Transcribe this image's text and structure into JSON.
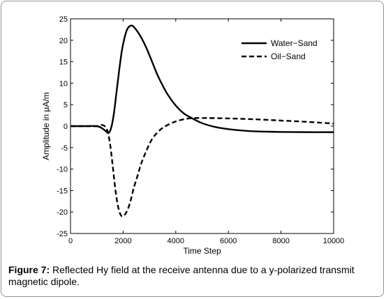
{
  "chart_data": {
    "type": "line",
    "title": "",
    "xlabel": "Time Step",
    "ylabel": "Amplitude in μA/m",
    "xlim": [
      0,
      10000
    ],
    "ylim": [
      -25,
      25
    ],
    "xticks": [
      0,
      2000,
      4000,
      6000,
      8000,
      10000
    ],
    "yticks": [
      -25,
      -20,
      -15,
      -10,
      -5,
      0,
      5,
      10,
      15,
      20,
      25
    ],
    "grid": false,
    "legend_position": "top-right",
    "series": [
      {
        "name": "Water−Sand",
        "style": "solid",
        "color": "#000000",
        "x": [
          0,
          500,
          1000,
          1200,
          1350,
          1450,
          1550,
          1650,
          1750,
          1850,
          1950,
          2050,
          2150,
          2250,
          2350,
          2450,
          2550,
          2700,
          2900,
          3100,
          3300,
          3500,
          3700,
          4000,
          4300,
          4600,
          5000,
          5500,
          6000,
          6500,
          7000,
          8000,
          9000,
          10000
        ],
        "y": [
          0,
          0,
          0,
          -0.5,
          -1.2,
          -1.6,
          -0.3,
          3,
          8,
          13,
          17.5,
          20.5,
          22.5,
          23.3,
          23.4,
          22.8,
          22,
          20.5,
          18,
          15,
          12,
          9.5,
          7.3,
          4.8,
          3,
          1.9,
          0.7,
          -0.2,
          -0.7,
          -1,
          -1.2,
          -1.35,
          -1.4,
          -1.4
        ]
      },
      {
        "name": "Oil−Sand",
        "style": "dashed",
        "color": "#000000",
        "x": [
          0,
          500,
          1000,
          1150,
          1300,
          1400,
          1500,
          1600,
          1700,
          1800,
          1900,
          2000,
          2100,
          2200,
          2300,
          2400,
          2550,
          2700,
          2900,
          3100,
          3300,
          3500,
          3800,
          4100,
          4500,
          5000,
          6000,
          7000,
          8000,
          9000,
          10000
        ],
        "y": [
          0,
          0,
          0,
          0.3,
          0,
          -1,
          -4,
          -9,
          -14.5,
          -18.5,
          -20.6,
          -21,
          -20.3,
          -19,
          -17,
          -14.5,
          -11.5,
          -8.5,
          -5.5,
          -3,
          -1.5,
          -0.4,
          0.6,
          1.3,
          1.8,
          1.9,
          1.8,
          1.6,
          1.3,
          1,
          0.6
        ]
      }
    ]
  },
  "caption": {
    "label": "Figure 7:",
    "text": " Reflected Hy field at the receive antenna due to a y-polarized transmit magnetic dipole."
  }
}
